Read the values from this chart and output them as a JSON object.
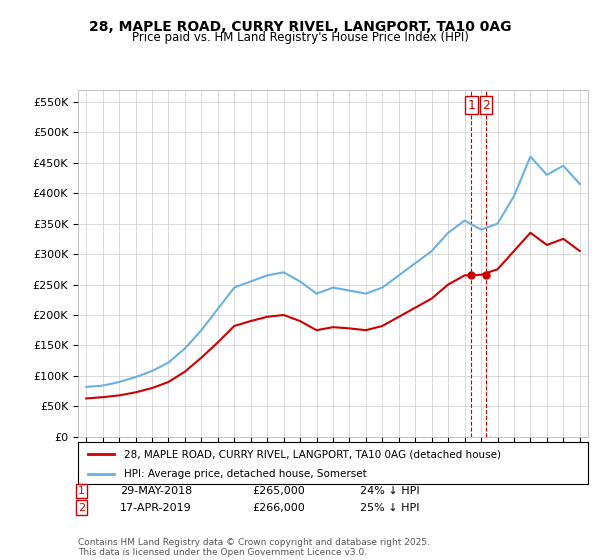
{
  "title": "28, MAPLE ROAD, CURRY RIVEL, LANGPORT, TA10 0AG",
  "subtitle": "Price paid vs. HM Land Registry's House Price Index (HPI)",
  "hpi_label": "HPI: Average price, detached house, Somerset",
  "property_label": "28, MAPLE ROAD, CURRY RIVEL, LANGPORT, TA10 0AG (detached house)",
  "footer": "Contains HM Land Registry data © Crown copyright and database right 2025.\nThis data is licensed under the Open Government Licence v3.0.",
  "sale1_date": "29-MAY-2018",
  "sale1_price": "£265,000",
  "sale1_hpi": "24% ↓ HPI",
  "sale2_date": "17-APR-2019",
  "sale2_price": "£266,000",
  "sale2_hpi": "25% ↓ HPI",
  "vline1_x": 2018.4,
  "vline2_x": 2019.3,
  "hpi_color": "#6ab0e0",
  "property_color": "#cc0000",
  "vline_color": "#cc0000",
  "ylim_min": 0,
  "ylim_max": 570000,
  "yticks": [
    0,
    50000,
    100000,
    150000,
    200000,
    250000,
    300000,
    350000,
    400000,
    450000,
    500000,
    550000
  ],
  "hpi_x": [
    1995,
    1996,
    1997,
    1998,
    1999,
    2000,
    2001,
    2002,
    2003,
    2004,
    2005,
    2006,
    2007,
    2008,
    2009,
    2010,
    2011,
    2012,
    2013,
    2014,
    2015,
    2016,
    2017,
    2018,
    2019,
    2020,
    2021,
    2022,
    2023,
    2024,
    2025
  ],
  "hpi_y": [
    82000,
    84000,
    90000,
    98000,
    108000,
    122000,
    145000,
    175000,
    210000,
    245000,
    255000,
    265000,
    270000,
    255000,
    235000,
    245000,
    240000,
    235000,
    245000,
    265000,
    285000,
    305000,
    335000,
    355000,
    340000,
    350000,
    395000,
    460000,
    430000,
    445000,
    415000
  ],
  "prop_x": [
    1995,
    1996,
    1997,
    1998,
    1999,
    2000,
    2001,
    2002,
    2003,
    2004,
    2005,
    2006,
    2007,
    2008,
    2009,
    2010,
    2011,
    2012,
    2013,
    2014,
    2015,
    2016,
    2017,
    2018,
    2019,
    2020,
    2021,
    2022,
    2023,
    2024,
    2025
  ],
  "prop_y": [
    63000,
    65000,
    68000,
    73000,
    80000,
    90000,
    107000,
    130000,
    155000,
    182000,
    190000,
    197000,
    200000,
    190000,
    175000,
    180000,
    178000,
    175000,
    182000,
    197000,
    212000,
    227000,
    250000,
    265000,
    266000,
    275000,
    305000,
    335000,
    315000,
    325000,
    305000
  ],
  "xlim_min": 1994.5,
  "xlim_max": 2025.5,
  "background_color": "#ffffff",
  "grid_color": "#cccccc"
}
